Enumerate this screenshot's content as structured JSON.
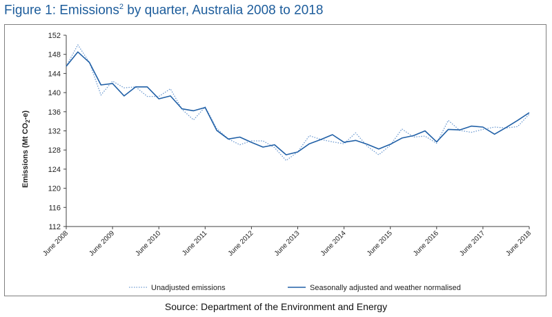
{
  "title": {
    "prefix": "Figure 1: Emissions",
    "sup": "2",
    "suffix": " by quarter, Australia 2008 to 2018"
  },
  "source": "Source: Department of the Environment and Energy",
  "colors": {
    "title": "#1c5c9b",
    "adjusted": "#1f5fa6",
    "unadjusted": "#6a98cf",
    "axis": "#404040"
  },
  "chart_data": {
    "type": "line",
    "title": "Figure 1: Emissions2 by quarter, Australia 2008 to 2018",
    "xlabel": "",
    "ylabel": "Emissions (Mt CO2-e)",
    "ylabel_parts": {
      "main": "Emissions (Mt CO",
      "sub": "2",
      "end": "-e)"
    },
    "ylim": [
      112,
      152
    ],
    "yticks": [
      112,
      116,
      120,
      124,
      128,
      132,
      136,
      140,
      144,
      148,
      152
    ],
    "x": [
      0,
      1,
      2,
      3,
      4,
      5,
      6,
      7,
      8,
      9,
      10,
      11,
      12,
      13,
      14,
      15,
      16,
      17,
      18,
      19,
      20,
      21,
      22,
      23,
      24,
      25,
      26,
      27,
      28,
      29,
      30,
      31,
      32,
      33,
      34,
      35,
      36,
      37,
      38,
      39,
      40
    ],
    "xticks": [
      {
        "x": 0,
        "label": "June 2008"
      },
      {
        "x": 4,
        "label": "June 2009"
      },
      {
        "x": 8,
        "label": "June 2010"
      },
      {
        "x": 12,
        "label": "June 2011"
      },
      {
        "x": 16,
        "label": "June 2012"
      },
      {
        "x": 20,
        "label": "June 2013"
      },
      {
        "x": 24,
        "label": "June 2014"
      },
      {
        "x": 28,
        "label": "June 2015"
      },
      {
        "x": 32,
        "label": "June 2016"
      },
      {
        "x": 36,
        "label": "June 2017"
      },
      {
        "x": 40,
        "label": "June 2018"
      }
    ],
    "legend_position": "bottom",
    "grid": false,
    "series": [
      {
        "name": "Unadjusted emissions",
        "style": "dotted",
        "values": [
          145.5,
          150.0,
          146.3,
          139.5,
          142.4,
          141.0,
          141.2,
          139.2,
          139.2,
          140.8,
          136.5,
          134.3,
          137.0,
          132.5,
          130.3,
          129.1,
          129.9,
          129.9,
          128.5,
          125.8,
          127.6,
          131.0,
          130.2,
          129.7,
          129.3,
          131.6,
          128.8,
          127.0,
          129.0,
          132.4,
          130.7,
          130.9,
          129.4,
          134.2,
          132.1,
          131.7,
          132.3,
          132.8,
          132.6,
          132.9,
          135.5
        ]
      },
      {
        "name": "Seasonally adjusted and weather normalised",
        "style": "solid",
        "values": [
          145.5,
          148.5,
          146.3,
          141.6,
          141.9,
          139.3,
          141.2,
          141.2,
          138.7,
          139.3,
          136.6,
          136.2,
          136.9,
          132.1,
          130.3,
          130.7,
          129.6,
          128.6,
          129.1,
          127.0,
          127.6,
          129.3,
          130.2,
          131.2,
          129.6,
          130.0,
          129.2,
          128.2,
          129.2,
          130.5,
          131.0,
          132.0,
          129.7,
          132.3,
          132.2,
          133.0,
          132.8,
          131.3,
          132.7,
          134.2,
          135.8
        ]
      }
    ]
  }
}
